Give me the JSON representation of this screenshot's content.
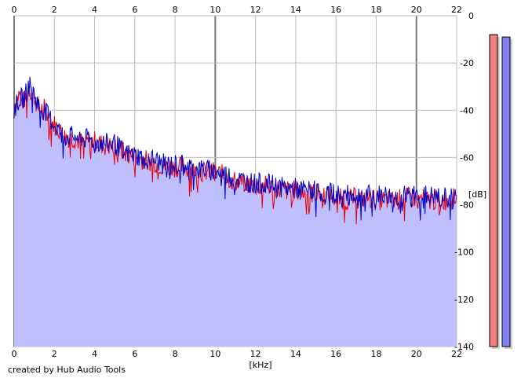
{
  "chart_data": {
    "type": "area",
    "xlabel": "[kHz]",
    "ylabel": "[dB]",
    "xlim": [
      0,
      22
    ],
    "ylim": [
      -140,
      0
    ],
    "x_ticks": [
      0,
      2,
      4,
      6,
      8,
      10,
      12,
      14,
      16,
      18,
      20,
      22
    ],
    "y_ticks": [
      0,
      -20,
      -40,
      -60,
      -80,
      -100,
      -120,
      -140
    ],
    "grid": true,
    "series": [
      {
        "color": "#e8000b",
        "x": [
          0.0,
          0.25,
          0.5,
          0.75,
          1.0,
          1.25,
          1.5,
          1.75,
          2.0,
          2.5,
          3.0,
          3.5,
          4.0,
          4.5,
          5.0,
          5.5,
          6.0,
          6.5,
          7.0,
          7.5,
          8.0,
          8.5,
          9.0,
          9.5,
          10.0,
          10.5,
          11.0,
          11.5,
          12.0,
          12.5,
          13.0,
          13.5,
          14.0,
          14.5,
          15.0,
          15.5,
          16.0,
          16.5,
          17.0,
          17.5,
          18.0,
          18.5,
          19.0,
          19.5,
          20.0,
          20.5,
          21.0,
          21.5,
          22.0
        ],
        "values": [
          -38,
          -33,
          -36,
          -31,
          -34,
          -40,
          -39,
          -44,
          -46,
          -51,
          -52,
          -54,
          -53,
          -55,
          -55,
          -58,
          -60,
          -61,
          -62,
          -64,
          -64,
          -64,
          -66,
          -66,
          -66,
          -68,
          -70,
          -71,
          -72,
          -72,
          -73,
          -74,
          -74,
          -75,
          -75,
          -76,
          -77,
          -78,
          -77,
          -77,
          -78,
          -78,
          -78,
          -77,
          -77,
          -78,
          -78,
          -78,
          -77
        ]
      },
      {
        "color": "#0000c8",
        "x": [
          0.0,
          0.25,
          0.5,
          0.75,
          1.0,
          1.25,
          1.5,
          1.75,
          2.0,
          2.5,
          3.0,
          3.5,
          4.0,
          4.5,
          5.0,
          5.5,
          6.0,
          6.5,
          7.0,
          7.5,
          8.0,
          8.5,
          9.0,
          9.5,
          10.0,
          10.5,
          11.0,
          11.5,
          12.0,
          12.5,
          13.0,
          13.5,
          14.0,
          14.5,
          15.0,
          15.5,
          16.0,
          16.5,
          17.0,
          17.5,
          18.0,
          18.5,
          19.0,
          19.5,
          20.0,
          20.5,
          21.0,
          21.5,
          22.0
        ],
        "values": [
          -40,
          -35,
          -35,
          -29,
          -33,
          -39,
          -40,
          -43,
          -46,
          -51,
          -51,
          -52,
          -53,
          -54,
          -54,
          -58,
          -59,
          -60,
          -61,
          -63,
          -63,
          -63,
          -65,
          -65,
          -66,
          -67,
          -69,
          -70,
          -71,
          -71,
          -72,
          -73,
          -73,
          -74,
          -74,
          -75,
          -75,
          -76,
          -76,
          -76,
          -76,
          -76,
          -77,
          -76,
          -76,
          -76,
          -77,
          -77,
          -76
        ]
      }
    ],
    "level_meters": [
      {
        "color": "#f28080",
        "level_db": -8
      },
      {
        "color": "#8080f0",
        "level_db": -9
      }
    ]
  },
  "credit": "created by Hub Audio Tools"
}
